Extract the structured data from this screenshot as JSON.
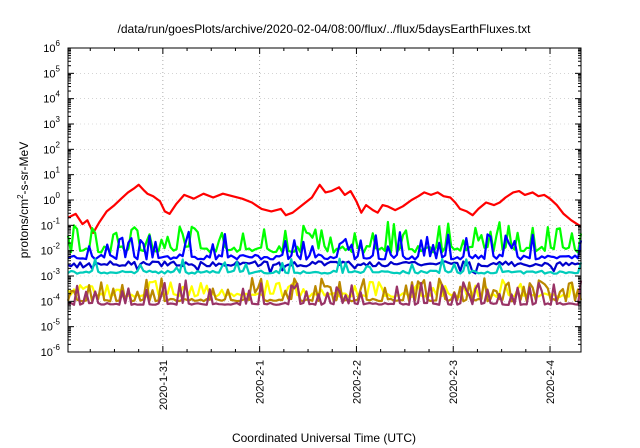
{
  "chart_data": {
    "type": "line",
    "title": "/data/run/goesPlots/archive/2020-02-04/08:00/flux/../flux/5daysEarthFluxes.txt",
    "xlabel": "Coordinated Universal Time (UTC)",
    "ylabel": {
      "prefix": "protons/cm",
      "sup": "2",
      "suffix": "-s-sr-MeV"
    },
    "yscale": "log",
    "ylim_exp": [
      -6,
      6
    ],
    "y_tick_base": "10",
    "y_tick_exponents": [
      -6,
      -5,
      -4,
      -3,
      -2,
      -1,
      0,
      1,
      2,
      3,
      4,
      5,
      6
    ],
    "xlim_days": [
      0.0,
      5.3
    ],
    "x_ticks": [
      {
        "label": "2020-1-31",
        "day": 0.98
      },
      {
        "label": "2020-2-1",
        "day": 1.98
      },
      {
        "label": "2020-2-2",
        "day": 2.98
      },
      {
        "label": "2020-2-3",
        "day": 3.98
      },
      {
        "label": "2020-2-4",
        "day": 4.98
      }
    ],
    "grid": true,
    "legend": "none",
    "series": [
      {
        "color": "#ff0000",
        "log_points": [
          [
            0.0,
            -0.7
          ],
          [
            0.08,
            -0.55
          ],
          [
            0.15,
            -0.95
          ],
          [
            0.2,
            -0.8
          ],
          [
            0.26,
            -1.3
          ],
          [
            0.32,
            -0.9
          ],
          [
            0.4,
            -0.45
          ],
          [
            0.48,
            -0.2
          ],
          [
            0.55,
            0.05
          ],
          [
            0.62,
            0.3
          ],
          [
            0.68,
            0.45
          ],
          [
            0.73,
            0.6
          ],
          [
            0.78,
            0.4
          ],
          [
            0.82,
            0.25
          ],
          [
            0.88,
            0.15
          ],
          [
            0.95,
            -0.05
          ],
          [
            1.0,
            -0.45
          ],
          [
            1.05,
            -0.55
          ],
          [
            1.12,
            -0.15
          ],
          [
            1.2,
            0.2
          ],
          [
            1.3,
            0.05
          ],
          [
            1.4,
            0.25
          ],
          [
            1.5,
            0.1
          ],
          [
            1.6,
            0.25
          ],
          [
            1.7,
            0.15
          ],
          [
            1.8,
            0.05
          ],
          [
            1.9,
            -0.1
          ],
          [
            2.0,
            -0.35
          ],
          [
            2.1,
            -0.45
          ],
          [
            2.2,
            -0.35
          ],
          [
            2.25,
            -0.6
          ],
          [
            2.32,
            -0.5
          ],
          [
            2.42,
            -0.2
          ],
          [
            2.52,
            0.1
          ],
          [
            2.6,
            0.6
          ],
          [
            2.66,
            0.3
          ],
          [
            2.72,
            0.35
          ],
          [
            2.8,
            0.5
          ],
          [
            2.86,
            0.2
          ],
          [
            2.92,
            0.35
          ],
          [
            2.98,
            -0.05
          ],
          [
            3.03,
            -0.5
          ],
          [
            3.08,
            -0.2
          ],
          [
            3.15,
            -0.4
          ],
          [
            3.2,
            -0.5
          ],
          [
            3.25,
            -0.2
          ],
          [
            3.3,
            -0.25
          ],
          [
            3.38,
            -0.4
          ],
          [
            3.46,
            -0.25
          ],
          [
            3.55,
            0.0
          ],
          [
            3.62,
            0.15
          ],
          [
            3.68,
            0.3
          ],
          [
            3.75,
            0.2
          ],
          [
            3.82,
            0.3
          ],
          [
            3.88,
            0.15
          ],
          [
            3.95,
            0.1
          ],
          [
            4.0,
            -0.1
          ],
          [
            4.05,
            -0.35
          ],
          [
            4.12,
            -0.45
          ],
          [
            4.18,
            -0.6
          ],
          [
            4.24,
            -0.35
          ],
          [
            4.32,
            -0.1
          ],
          [
            4.4,
            -0.2
          ],
          [
            4.46,
            -0.1
          ],
          [
            4.52,
            0.1
          ],
          [
            4.6,
            0.3
          ],
          [
            4.66,
            0.35
          ],
          [
            4.72,
            0.2
          ],
          [
            4.8,
            0.3
          ],
          [
            4.86,
            0.15
          ],
          [
            4.92,
            0.2
          ],
          [
            4.98,
            0.05
          ],
          [
            5.05,
            -0.2
          ],
          [
            5.12,
            -0.55
          ],
          [
            5.2,
            -0.8
          ],
          [
            5.26,
            -0.95
          ],
          [
            5.3,
            -1.05
          ]
        ]
      },
      {
        "color": "#00ff00",
        "log_base": -1.95,
        "log_jitter": 0.13,
        "spike_max": 1.05,
        "spike_chance": 0.33,
        "seed": 11
      },
      {
        "color": "#0000ff",
        "log_base": -2.25,
        "log_jitter": 0.1,
        "spike_max": 0.95,
        "spike_chance": 0.24,
        "seed": 23
      },
      {
        "color": "#0000cc",
        "log_base": -2.52,
        "log_jitter": 0.1,
        "spike_max": 0.0,
        "spike_chance": 0.2,
        "dip_min": -0.35,
        "seed": 37
      },
      {
        "color": "#00ccbb",
        "log_base": -2.85,
        "log_jitter": 0.06,
        "spike_max": 0.55,
        "spike_chance": 0.14,
        "seed": 41
      },
      {
        "color": "#ffff00",
        "log_base": -3.75,
        "log_jitter": 0.08,
        "spike_max": 0.55,
        "spike_chance": 0.25,
        "seed": 53
      },
      {
        "color": "#bb8800",
        "log_base": -3.95,
        "log_jitter": 0.05,
        "spike_max": 0.9,
        "spike_chance": 0.34,
        "seed": 67
      },
      {
        "color": "#993366",
        "log_base": -4.1,
        "log_jitter": 0.04,
        "spike_max": 0.9,
        "spike_chance": 0.25,
        "seed": 79
      }
    ]
  }
}
